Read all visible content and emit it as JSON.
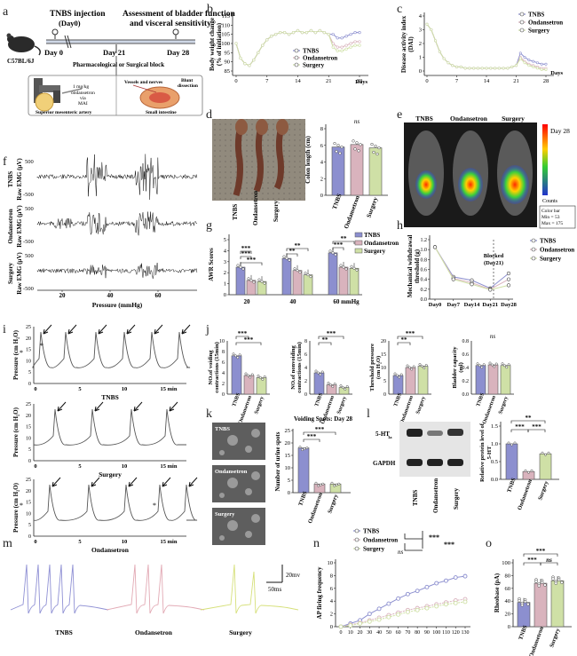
{
  "colors": {
    "tnbs": "#8c8fcf",
    "ondansetron": "#d9b3bd",
    "surgery": "#cfe0a6",
    "axis": "#222222",
    "dark": "#333333"
  },
  "panels": [
    "a",
    "b",
    "c",
    "d",
    "e",
    "f",
    "g",
    "h",
    "i",
    "j",
    "k",
    "l",
    "m",
    "n",
    "o"
  ],
  "a": {
    "title_inj": "TNBS injection",
    "title_day0": "(Day0)",
    "title_assess1": "Assessment of bladder function",
    "title_assess2": "and visceral sensitivity",
    "mouse": "C57BL/6J",
    "day0": "Day 0",
    "day21": "Day 21",
    "day28": "Day 28",
    "block": "Pharmacological or Surgical block",
    "dose1": "1 mg/kg",
    "dose2": "ondansetron",
    "dose3": "via",
    "dose4": "MAI",
    "vessels": "Vessels and nerves",
    "blunt1": "Blunt",
    "blunt2": "dissection",
    "sma": "Superior mesenteric artery",
    "si": "Small intestine"
  },
  "b": {
    "ylabel": "Body weight change",
    "ylabel2": "(% of initiation)",
    "xlabel": "Days",
    "yticks": [
      "85",
      "90",
      "95",
      "100",
      "105",
      "110",
      "115"
    ],
    "xticks": [
      "0",
      "7",
      "14",
      "21",
      "28"
    ],
    "legend": [
      "TNBS",
      "Ondansetron",
      "Surgery"
    ]
  },
  "c": {
    "ylabel": "Disease activity index",
    "ylabel2": "(DAI)",
    "xlabel": "Days",
    "yticks": [
      "0",
      "1",
      "2",
      "3",
      "4"
    ],
    "xticks": [
      "0",
      "7",
      "14",
      "21",
      "28"
    ],
    "legend": [
      "TNBS",
      "Ondansetron",
      "Surgery"
    ]
  },
  "d": {
    "ylabel": "Colon length (cm)",
    "ns": "ns",
    "yticks": [
      "0",
      "2",
      "4",
      "6",
      "8"
    ],
    "cats": [
      "TNBS",
      "Ondansetron",
      "Surgery"
    ],
    "values": [
      5.8,
      6.1,
      5.7
    ]
  },
  "e": {
    "labels": [
      "TNBS",
      "Ondansetron",
      "Surgery"
    ],
    "day": "Day 28",
    "counts": "Counts",
    "colorbar": "Color bar",
    "min": "Min = 53",
    "max": "Max = 175"
  },
  "f": {
    "rows": [
      "TNBS",
      "Ondansetron",
      "Surgery"
    ],
    "ylabel": "Raw EMG (μV)",
    "p500": "500",
    "m500": "-500",
    "xlabel": "Pressure (mmHg)",
    "xticks": [
      "20",
      "40",
      "60"
    ]
  },
  "g": {
    "ylabel": "AWR Scores",
    "yticks": [
      "0",
      "1",
      "2",
      "3",
      "4",
      "5"
    ],
    "groups": [
      "20",
      "40",
      "60 mmHg"
    ],
    "legend": [
      "TNBS",
      "Ondansetron",
      "Surgery"
    ],
    "values": [
      [
        2.5,
        1.3,
        1.2
      ],
      [
        3.3,
        2.2,
        1.8
      ],
      [
        3.8,
        2.5,
        2.4
      ]
    ],
    "stars": [
      "***",
      "***",
      "***",
      "**",
      "**",
      "**",
      "***"
    ]
  },
  "h": {
    "ylabel": "Mechanical withdrawal",
    "ylabel2": "threshold (g)",
    "yticks": [
      "0.0",
      "0.2",
      "0.4",
      "0.6",
      "0.8",
      "1.0",
      "1.2"
    ],
    "xticks": [
      "Day0",
      "Day7",
      "Day14",
      "Day21",
      "Day28"
    ],
    "blocked1": "Blocked",
    "blocked2": "(Day21)",
    "legend": [
      "TNBS",
      "Ondansetron",
      "Surgery"
    ]
  },
  "i": {
    "ylabel": "Pressure (cm H₂O)",
    "yticks": [
      "0",
      "5",
      "10",
      "15",
      "20",
      "25"
    ],
    "xticks": [
      "0",
      "5",
      "10",
      "15 min"
    ],
    "labels": [
      "TNBS",
      "Surgery",
      "Ondansetron"
    ]
  },
  "j": {
    "titles": [
      "NO.of voiding",
      "NO.of nonvoiding",
      "Threshold pressure",
      "Bladder capacity"
    ],
    "titles2": [
      "contractions (15min)",
      "contractions (15min)",
      "(cm H₂O)",
      "(ml)"
    ],
    "cats": [
      "TNBS",
      "Ondansetron",
      "Surgery"
    ],
    "ticks1": [
      "0",
      "2",
      "4",
      "6",
      "8",
      "10"
    ],
    "ticks2": [
      "0",
      "2",
      "4",
      "6",
      "8"
    ],
    "ticks3": [
      "0",
      "5",
      "10",
      "15",
      "20"
    ],
    "ticks4": [
      "0.0",
      "0.2",
      "0.4",
      "0.6",
      "0.8"
    ],
    "v1": [
      7.2,
      3.5,
      3.1
    ],
    "v2": [
      3.2,
      1.4,
      1.0
    ],
    "v3": [
      7.0,
      10.0,
      10.5
    ],
    "v4": [
      0.43,
      0.44,
      0.43
    ],
    "ns": "ns",
    "stars": [
      "***",
      "***",
      "**",
      "***",
      "**",
      "***"
    ]
  },
  "k": {
    "labels": [
      "TNBS",
      "Ondansetron",
      "Surgery"
    ],
    "title": "Voiding Spots: Day 28",
    "ylabel": "Number of urine spots",
    "yticks": [
      "0",
      "5",
      "10",
      "15",
      "20",
      "25"
    ],
    "values": [
      18,
      3.5,
      3.5
    ],
    "stars": [
      "***",
      "***"
    ]
  },
  "l": {
    "protein": "5-HT",
    "sub": "3a",
    "gapdh": "GAPDH",
    "ylabel": "Relative protein level of",
    "ylabel2": "5-HT",
    "yticks": [
      "0.0",
      "0.5",
      "1.0",
      "1.5"
    ],
    "values": [
      1.0,
      0.22,
      0.72
    ],
    "stars": [
      "**",
      "***",
      "***"
    ],
    "cats": [
      "TNBS",
      "Ondansetron",
      "Surgery"
    ]
  },
  "m": {
    "scale_mv": "20mv",
    "scale_ms": "50ms",
    "labels": [
      "TNBS",
      "Ondansetron",
      "Surgery"
    ]
  },
  "n": {
    "ylabel": "AP firing frequency",
    "yticks": [
      "0",
      "2",
      "4",
      "6",
      "8",
      "10"
    ],
    "xticks": [
      "0",
      "10",
      "20",
      "30",
      "40",
      "50",
      "60",
      "70",
      "80",
      "90",
      "100",
      "110",
      "120",
      "130"
    ],
    "legend": [
      "TNBS",
      "Ondansetron",
      "Surgery"
    ],
    "ns": "ns",
    "stars": [
      "***",
      "***"
    ]
  },
  "o": {
    "ylabel": "Rheobase (pA)",
    "yticks": [
      "0",
      "20",
      "40",
      "60",
      "80",
      "100"
    ],
    "cats": [
      "TNBS",
      "Ondansetron",
      "Surgery"
    ],
    "values": [
      38,
      68,
      72
    ],
    "stars": [
      "***",
      "***"
    ],
    "ns": "ns"
  }
}
